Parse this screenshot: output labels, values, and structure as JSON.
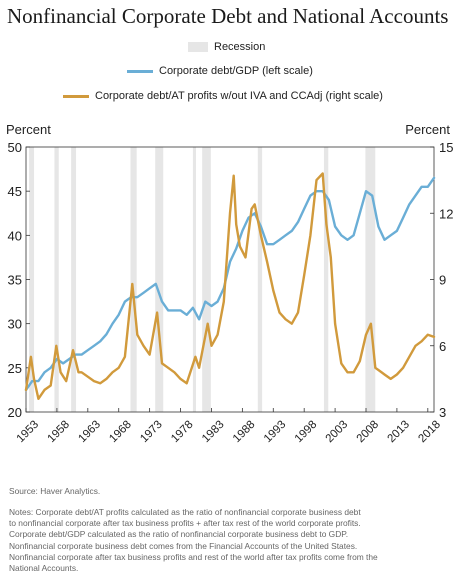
{
  "title": "Nonfinancial Corporate Debt and National Accounts",
  "source": "Source: Haver Analytics.",
  "notes": [
    "Notes: Corporate debt/AT profits calculated as the ratio of nonfinancial corporate business debt",
    "to nonfinancial corporate after tax business profits + after tax rest of the world corporate profits.",
    "Corporate debt/GDP calculated as the ratio of nonfinancial corporate business debt to GDP.",
    "Nonfinancial corporate business debt comes from the Financial Accounts of the United States.",
    "Nonfinancial corporate after tax business profits and rest of the world after tax profits come from the",
    "National Accounts."
  ],
  "colors": {
    "debt_gdp": "#6aaed6",
    "debt_profits": "#d19a3c",
    "recession": "#e6e6e6"
  },
  "chart_data": {
    "type": "line",
    "xlabel": "",
    "ylabel_left": "Percent",
    "ylabel_right": "Percent",
    "xlim": [
      1953,
      2019
    ],
    "ylim_left": [
      20,
      50
    ],
    "ylim_right": [
      3,
      15
    ],
    "xticks": [
      1953,
      1958,
      1963,
      1968,
      1973,
      1978,
      1983,
      1988,
      1993,
      1998,
      2003,
      2008,
      2013,
      2018
    ],
    "yticks_left": [
      20,
      25,
      30,
      35,
      40,
      45,
      50
    ],
    "yticks_right": [
      3,
      6,
      9,
      12,
      15
    ],
    "legend": {
      "recession": "Recession",
      "debt_gdp": "Corporate debt/GDP (left scale)",
      "debt_profits": "Corporate debt/AT profits w/out IVA and CCAdj (right scale)"
    },
    "recessions": [
      [
        1953.5,
        1954.3
      ],
      [
        1957.6,
        1958.3
      ],
      [
        1960.3,
        1961.1
      ],
      [
        1969.9,
        1970.9
      ],
      [
        1973.9,
        1975.2
      ],
      [
        1980.0,
        1980.5
      ],
      [
        1981.5,
        1982.9
      ],
      [
        1990.5,
        1991.2
      ],
      [
        2001.2,
        2001.9
      ],
      [
        2007.9,
        2009.5
      ]
    ],
    "series": [
      {
        "name": "Corporate debt/GDP (left scale)",
        "axis": "left",
        "x": [
          1953,
          1954,
          1955,
          1956,
          1957,
          1958,
          1959,
          1960,
          1961,
          1962,
          1963,
          1964,
          1965,
          1966,
          1967,
          1968,
          1969,
          1970,
          1971,
          1972,
          1973,
          1974,
          1975,
          1976,
          1977,
          1978,
          1979,
          1980,
          1981,
          1982,
          1983,
          1984,
          1985,
          1986,
          1987,
          1988,
          1989,
          1990,
          1991,
          1992,
          1993,
          1994,
          1995,
          1996,
          1997,
          1998,
          1999,
          2000,
          2001,
          2002,
          2003,
          2004,
          2005,
          2006,
          2007,
          2008,
          2009,
          2010,
          2011,
          2012,
          2013,
          2014,
          2015,
          2016,
          2017,
          2018,
          2019
        ],
        "values": [
          22.5,
          23.5,
          23.5,
          24.5,
          25.0,
          26.0,
          25.5,
          26.0,
          26.5,
          26.5,
          27.0,
          27.5,
          28.0,
          28.8,
          30.0,
          31.0,
          32.5,
          33.0,
          33.0,
          33.5,
          34.0,
          34.5,
          32.5,
          31.5,
          31.5,
          31.5,
          31.0,
          31.8,
          30.5,
          32.5,
          32.0,
          32.5,
          34.0,
          37.0,
          38.5,
          40.5,
          42.0,
          42.5,
          41.0,
          39.0,
          39.0,
          39.5,
          40.0,
          40.5,
          41.5,
          43.0,
          44.5,
          45.0,
          45.0,
          44.0,
          41.0,
          40.0,
          39.5,
          40.0,
          42.5,
          45.0,
          44.5,
          41.0,
          39.5,
          40.0,
          40.5,
          42.0,
          43.5,
          44.5,
          45.5,
          45.5,
          46.5
        ]
      },
      {
        "name": "Corporate debt/AT profits w/out IVA and CCAdj (right scale)",
        "axis": "right",
        "x": [
          1953,
          1953.8,
          1954.3,
          1955,
          1956,
          1957,
          1957.9,
          1958.6,
          1959.5,
          1960.6,
          1961.5,
          1962,
          1963,
          1964,
          1965,
          1966,
          1967,
          1968,
          1969,
          1970.2,
          1971,
          1972,
          1973,
          1974.2,
          1975,
          1976,
          1977,
          1978,
          1979,
          1980.4,
          1981,
          1982.4,
          1983,
          1984,
          1985,
          1986,
          1986.6,
          1987,
          1987.6,
          1988.5,
          1989.5,
          1990,
          1991,
          1992,
          1993,
          1994,
          1995,
          1996,
          1997,
          1998,
          1999,
          2000,
          2001,
          2001.6,
          2002.3,
          2003,
          2004,
          2005,
          2006,
          2007,
          2008,
          2008.8,
          2009.5,
          2010,
          2011,
          2012,
          2013,
          2014,
          2015,
          2016,
          2017,
          2018,
          2019
        ],
        "values": [
          4.0,
          5.5,
          4.5,
          3.6,
          4.0,
          4.2,
          6.0,
          4.8,
          4.4,
          5.8,
          4.8,
          4.8,
          4.6,
          4.4,
          4.3,
          4.5,
          4.8,
          5.0,
          5.5,
          8.8,
          6.5,
          6.0,
          5.6,
          7.5,
          5.2,
          5.0,
          4.8,
          4.5,
          4.3,
          5.5,
          5.0,
          7.0,
          6.0,
          6.5,
          8.0,
          12.0,
          13.7,
          11.5,
          10.5,
          10.0,
          12.2,
          12.4,
          11.0,
          9.8,
          8.5,
          7.5,
          7.2,
          7.0,
          7.5,
          9.2,
          11.0,
          13.5,
          13.8,
          11.5,
          10.0,
          7.0,
          5.2,
          4.8,
          4.8,
          5.3,
          6.5,
          7.0,
          5.0,
          4.9,
          4.7,
          4.5,
          4.7,
          5.0,
          5.5,
          6.0,
          6.2,
          6.5,
          6.4
        ]
      }
    ]
  }
}
